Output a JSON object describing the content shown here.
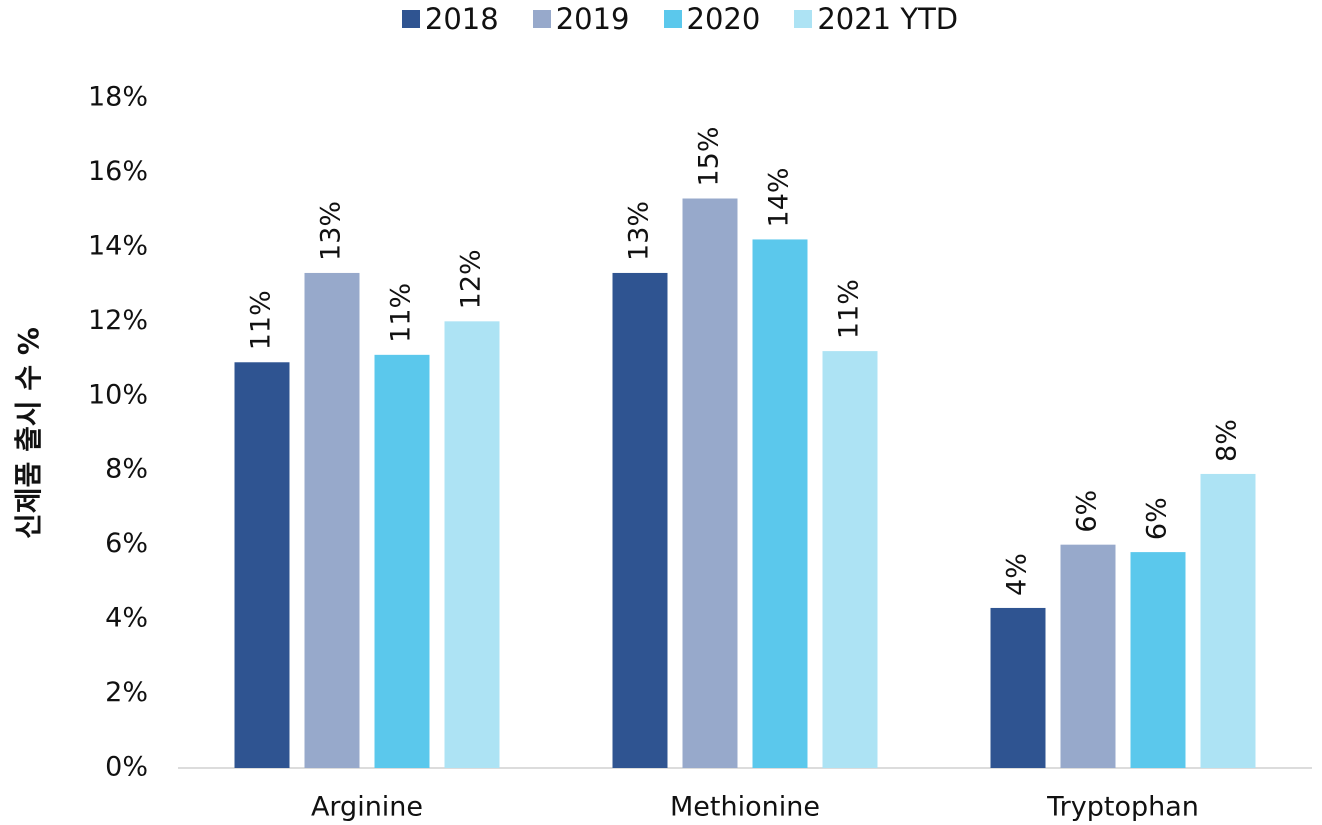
{
  "chart_data": {
    "type": "bar",
    "y_label": "신제품 출시 수 %",
    "categories": [
      "Arginine",
      "Methionine",
      "Tryptophan"
    ],
    "series": [
      {
        "name": "2018",
        "color": "#2f5491",
        "values": [
          10.9,
          13.3,
          4.3
        ],
        "value_labels": [
          "11%",
          "13%",
          "4%"
        ]
      },
      {
        "name": "2019",
        "color": "#97a9cb",
        "values": [
          13.3,
          15.3,
          6.0
        ],
        "value_labels": [
          "13%",
          "15%",
          "6%"
        ]
      },
      {
        "name": "2020",
        "color": "#5bc8ec",
        "values": [
          11.1,
          14.2,
          5.8
        ],
        "value_labels": [
          "11%",
          "14%",
          "6%"
        ]
      },
      {
        "name": "2021 YTD",
        "color": "#ade3f4",
        "values": [
          12.0,
          11.2,
          7.9
        ],
        "value_labels": [
          "12%",
          "11%",
          "8%"
        ]
      }
    ],
    "ylim": [
      0,
      18
    ],
    "yticks": [
      {
        "value": 0,
        "label": "0%"
      },
      {
        "value": 2,
        "label": "2%"
      },
      {
        "value": 4,
        "label": "4%"
      },
      {
        "value": 6,
        "label": "6%"
      },
      {
        "value": 8,
        "label": "8%"
      },
      {
        "value": 10,
        "label": "10%"
      },
      {
        "value": 12,
        "label": "12%"
      },
      {
        "value": 14,
        "label": "14%"
      },
      {
        "value": 16,
        "label": "16%"
      },
      {
        "value": 18,
        "label": "18%"
      }
    ],
    "grid": false,
    "legend": "top"
  }
}
